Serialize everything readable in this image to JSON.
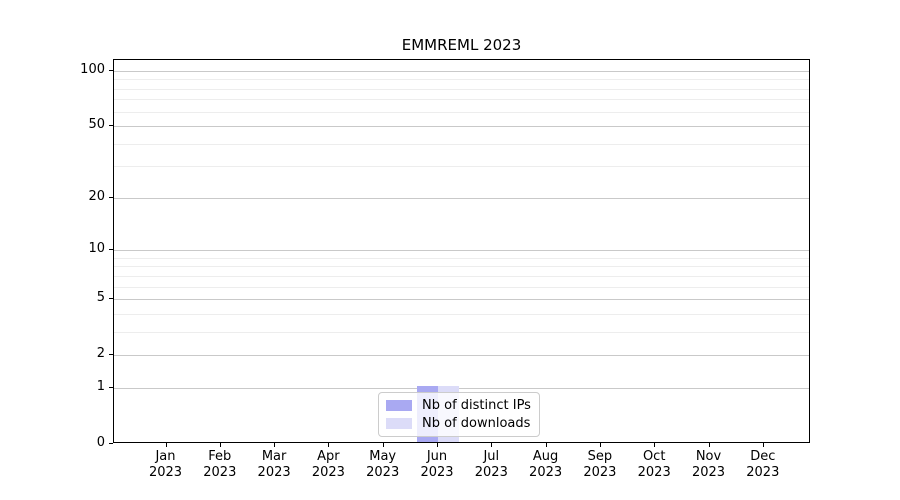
{
  "chart_data": {
    "type": "bar",
    "title": "EMMREML 2023",
    "year": "2023",
    "months": [
      "Jan",
      "Feb",
      "Mar",
      "Apr",
      "May",
      "Jun",
      "Jul",
      "Aug",
      "Sep",
      "Oct",
      "Nov",
      "Dec"
    ],
    "categories": [
      "Jan 2023",
      "Feb 2023",
      "Mar 2023",
      "Apr 2023",
      "May 2023",
      "Jun 2023",
      "Jul 2023",
      "Aug 2023",
      "Sep 2023",
      "Oct 2023",
      "Nov 2023",
      "Dec 2023"
    ],
    "series": [
      {
        "name": "Nb of distinct IPs",
        "color": "#a9a9f2",
        "values": [
          0,
          0,
          0,
          0,
          0,
          1,
          0,
          0,
          0,
          0,
          0,
          0
        ]
      },
      {
        "name": "Nb of downloads",
        "color": "#dcdcf8",
        "values": [
          0,
          0,
          0,
          0,
          0,
          1,
          0,
          0,
          0,
          0,
          0,
          0
        ]
      }
    ],
    "y_axis": {
      "major_ticks": [
        0,
        1,
        2,
        5,
        10,
        20,
        50,
        100
      ],
      "minor_ticks": [
        3,
        4,
        6,
        7,
        8,
        9,
        30,
        40,
        60,
        70,
        80,
        90
      ],
      "scale": "log10(v+1)",
      "ylim": [
        0,
        100
      ]
    },
    "grid": "horizontal-only",
    "legend": {
      "position": "bottom-center",
      "entries": [
        "Nb of distinct IPs",
        "Nb of downloads"
      ]
    },
    "colors": {
      "bar_distinct_ips": "#a9a9f2",
      "bar_downloads": "#dcdcf8",
      "major_grid": "#c9c9c9",
      "minor_grid": "#ededed",
      "axis": "#000000",
      "background": "#ffffff"
    }
  }
}
